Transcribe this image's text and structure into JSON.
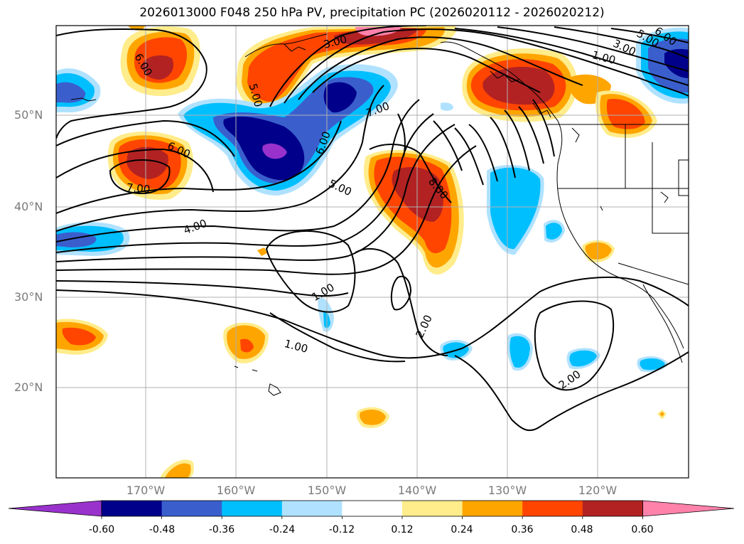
{
  "title": "2026013000 F048 250 hPa PV, precipitation PC (2026020112 - 2026020212)",
  "latitude_labels": [
    "50°N",
    "40°N",
    "30°N",
    "20°N"
  ],
  "longitude_labels": [
    "170°W",
    "160°W",
    "150°W",
    "140°W",
    "130°W",
    "120°W"
  ],
  "contour_labels": [
    "6.00",
    "5.00",
    "3.00",
    "7.00",
    "6.00",
    "5.00",
    "6.00",
    "7.00",
    "4.00",
    "8.00",
    "1.00",
    "1.00",
    "2.00",
    "2.00",
    "1.00",
    "3.00",
    "5.00",
    "6.00"
  ],
  "colorbar": {
    "tick_labels": [
      "-0.60",
      "-0.48",
      "-0.36",
      "-0.24",
      "-0.12",
      "0.12",
      "0.24",
      "0.36",
      "0.48",
      "0.60"
    ],
    "colors": [
      "#9932cc",
      "#00008b",
      "#3a5fcd",
      "#00bfff",
      "#b0e2ff",
      "#ffffff",
      "#ffec8b",
      "#ffa500",
      "#ff4500",
      "#b22222",
      "#ff82ab"
    ]
  },
  "colors": {
    "deep_purple": "#9932cc",
    "dark_blue": "#00008b",
    "blue": "#3a5fcd",
    "sky": "#00bfff",
    "light_sky": "#b0e2ff",
    "light_yellow": "#ffec8b",
    "orange": "#ffa500",
    "red_orange": "#ff4500",
    "dark_red": "#b22222",
    "pink": "#ff82ab"
  }
}
